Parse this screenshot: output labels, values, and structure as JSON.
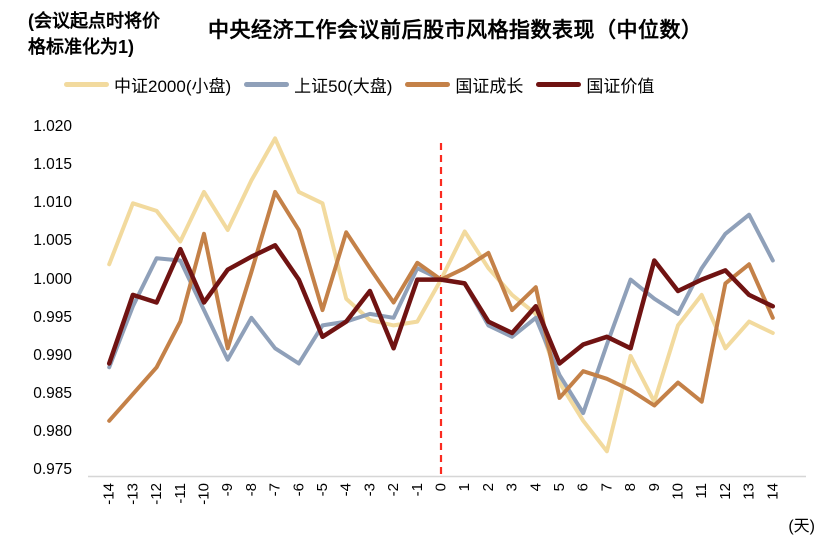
{
  "header": {
    "note_line1": "(会议起点时将价",
    "note_line2": "格标准化为1)",
    "title": "中央经济工作会议前后股市风格指数表现（中位数）"
  },
  "chart_data": {
    "type": "line",
    "title": "中央经济工作会议前后股市风格指数表现（中位数）",
    "note": "(会议起点时将价格标准化为1)",
    "x_unit": "(天)",
    "xlabel": "",
    "ylabel": "",
    "x": [
      -14,
      -13,
      -12,
      -11,
      -10,
      -9,
      -8,
      -7,
      -6,
      -5,
      -4,
      -3,
      -2,
      -1,
      0,
      1,
      2,
      3,
      4,
      5,
      6,
      7,
      8,
      9,
      10,
      11,
      12,
      13,
      14
    ],
    "y_ticks": [
      1.02,
      1.015,
      1.01,
      1.005,
      1.0,
      0.995,
      0.99,
      0.985,
      0.98,
      0.975
    ],
    "ylim": [
      0.975,
      1.02
    ],
    "grid": false,
    "legend_position": "top",
    "event_line": {
      "x": 0,
      "color": "#FB2B20",
      "style": "dashed"
    },
    "axis_line_color": "#D6D6D6",
    "series": [
      {
        "name": "中证2000(小盘)",
        "color": "#F2DA9E",
        "values": [
          1.002,
          1.01,
          1.009,
          1.005,
          1.0115,
          1.0065,
          1.013,
          1.0185,
          1.0115,
          1.01,
          0.9975,
          0.9947,
          0.994,
          0.9945,
          1.0,
          1.0063,
          1.0015,
          0.998,
          0.9955,
          0.9865,
          0.9815,
          0.9775,
          0.99,
          0.984,
          0.994,
          0.998,
          0.991,
          0.9945,
          0.993
        ]
      },
      {
        "name": "上证50(大盘)",
        "color": "#8FA0B9",
        "values": [
          0.9885,
          0.9965,
          1.0028,
          1.0025,
          0.996,
          0.9895,
          0.995,
          0.991,
          0.989,
          0.994,
          0.9945,
          0.9955,
          0.995,
          1.0015,
          1.0,
          0.9995,
          0.994,
          0.9925,
          0.995,
          0.9875,
          0.9825,
          0.9915,
          1.0,
          0.9975,
          0.9955,
          1.0015,
          1.006,
          1.0085,
          1.0025
        ]
      },
      {
        "name": "国证成长",
        "color": "#C48148",
        "values": [
          0.9815,
          0.985,
          0.9885,
          0.9945,
          1.006,
          0.991,
          1.001,
          1.0115,
          1.0065,
          0.996,
          1.0062,
          1.0015,
          0.997,
          1.0022,
          1.0,
          1.0015,
          1.0035,
          0.996,
          0.999,
          0.9845,
          0.988,
          0.987,
          0.9855,
          0.9835,
          0.9865,
          0.984,
          0.9995,
          1.002,
          0.995
        ]
      },
      {
        "name": "国证价值",
        "color": "#701312",
        "values": [
          0.989,
          0.998,
          0.997,
          1.004,
          0.997,
          1.0013,
          1.003,
          1.0045,
          1.0,
          0.9925,
          0.9945,
          0.9985,
          0.991,
          1.0,
          1.0,
          0.9995,
          0.9945,
          0.993,
          0.9965,
          0.989,
          0.9915,
          0.9925,
          0.991,
          1.0025,
          0.9985,
          1.0,
          1.0012,
          0.998,
          0.9965
        ]
      }
    ]
  }
}
